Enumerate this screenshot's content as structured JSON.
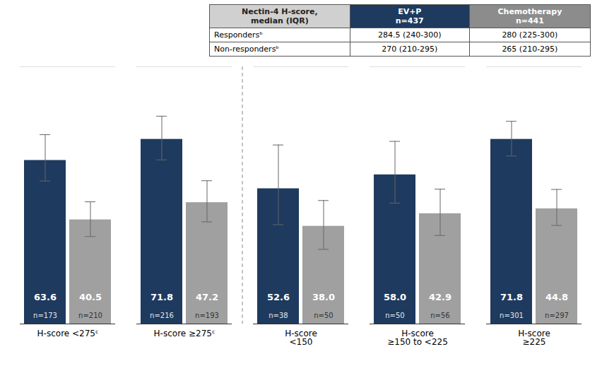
{
  "chart_data": {
    "type": "bar",
    "categories": [
      "H-score <275ᶜ",
      "H-score ≥275ᶜ",
      "H-score\n<150",
      "H-score\n≥150 to <225",
      "H-score\n≥225"
    ],
    "series": [
      {
        "name": "EV+P",
        "color": "#1E3A5F",
        "values": [
          63.6,
          71.8,
          52.6,
          58.0,
          71.8
        ],
        "value_labels": [
          "63.6",
          "71.8",
          "52.6",
          "58.0",
          "71.8"
        ],
        "error_up": [
          10.0,
          9.0,
          17.0,
          13.0,
          7.0
        ],
        "error_down": [
          8.0,
          8.0,
          14.0,
          11.0,
          6.5
        ],
        "n_labels": [
          "n=173",
          "n=216",
          "n=38",
          "n=50",
          "n=301"
        ]
      },
      {
        "name": "Chemotherapy",
        "color": "#A0A0A0",
        "values": [
          40.5,
          47.2,
          38.0,
          42.9,
          44.8
        ],
        "value_labels": [
          "40.5",
          "47.2",
          "38.0",
          "42.9",
          "44.8"
        ],
        "error_up": [
          7.0,
          8.5,
          10.0,
          9.5,
          7.5
        ],
        "error_down": [
          6.5,
          7.5,
          9.0,
          8.5,
          6.5
        ],
        "n_labels": [
          "n=210",
          "n=193",
          "n=50",
          "n=56",
          "n=297"
        ]
      }
    ],
    "ylim": [
      0,
      100
    ],
    "yticks": [],
    "tick_labels": "x",
    "data_labels": true,
    "table": {
      "header": [
        "Nectin-4 H-score,\nmedian (IQR)",
        "EV+P\nn=437",
        "Chemotherapy\nn=441"
      ],
      "header_colors": [
        "#D0D0D0",
        "#1E3A5F",
        "#8C8C8C"
      ],
      "rows": [
        [
          "Respondersᵇ",
          "284.5 (240-300)",
          "280 (225-300)"
        ],
        [
          "Non-respondersᵇ",
          "270 (210-295)",
          "265 (210-295)"
        ]
      ]
    }
  }
}
